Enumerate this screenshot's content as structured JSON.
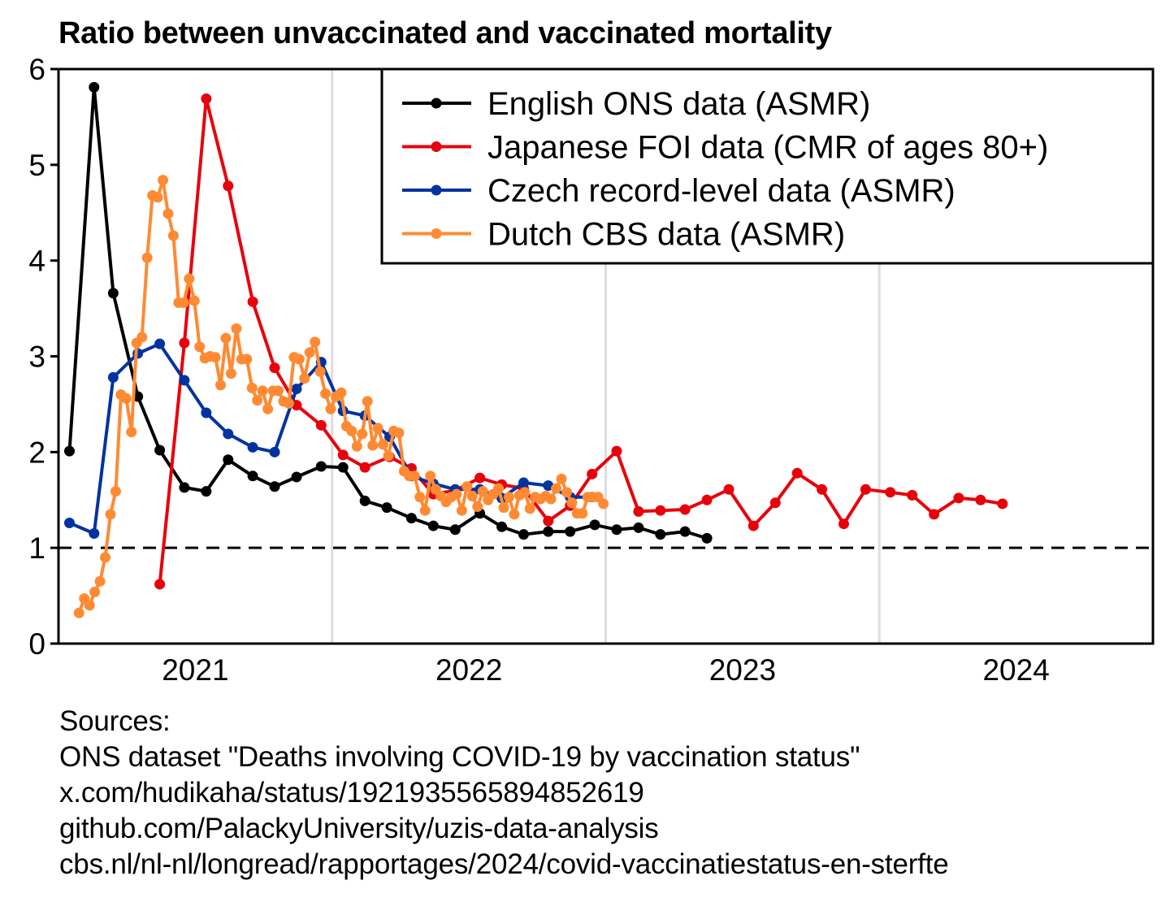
{
  "chart_data": {
    "type": "line",
    "title": "Ratio between unvaccinated and vaccinated mortality",
    "xlabel": "",
    "ylabel": "",
    "xlim": [
      2020.5,
      2024.5
    ],
    "ylim": [
      0,
      6
    ],
    "x_ticks": [
      {
        "value": 2021,
        "label": "2021"
      },
      {
        "value": 2022,
        "label": "2022"
      },
      {
        "value": 2023,
        "label": "2023"
      },
      {
        "value": 2024,
        "label": "2024"
      }
    ],
    "x_gridlines": [
      2021.5,
      2022.5,
      2023.5
    ],
    "y_ticks": [
      {
        "value": 0,
        "label": "0"
      },
      {
        "value": 1,
        "label": "1"
      },
      {
        "value": 2,
        "label": "2"
      },
      {
        "value": 3,
        "label": "3"
      },
      {
        "value": 4,
        "label": "4"
      },
      {
        "value": 5,
        "label": "5"
      },
      {
        "value": 6,
        "label": "6"
      }
    ],
    "reference_line": {
      "y": 1,
      "style": "dashed"
    },
    "grid": "vertical",
    "legend_position": "top-right",
    "series": [
      {
        "name": "English ONS data (ASMR)",
        "color": "#000000",
        "x": [
          2020.54,
          2020.63,
          2020.7,
          2020.79,
          2020.87,
          2020.96,
          2021.04,
          2021.12,
          2021.21,
          2021.29,
          2021.37,
          2021.46,
          2021.54,
          2021.62,
          2021.7,
          2021.79,
          2021.87,
          2021.95,
          2022.04,
          2022.12,
          2022.2,
          2022.29,
          2022.37,
          2022.46,
          2022.54,
          2022.62,
          2022.7,
          2022.79,
          2022.87
        ],
        "y": [
          2.01,
          5.81,
          3.66,
          2.58,
          2.02,
          1.63,
          1.59,
          1.92,
          1.75,
          1.64,
          1.74,
          1.85,
          1.84,
          1.49,
          1.42,
          1.31,
          1.23,
          1.19,
          1.36,
          1.22,
          1.14,
          1.17,
          1.17,
          1.24,
          1.19,
          1.21,
          1.14,
          1.17,
          1.1
        ]
      },
      {
        "name": "Japanese FOI data (CMR of ages 80+)",
        "color": "#e8000b",
        "x": [
          2020.87,
          2020.96,
          2021.04,
          2021.12,
          2021.21,
          2021.29,
          2021.37,
          2021.46,
          2021.54,
          2021.62,
          2021.71,
          2021.79,
          2021.87,
          2021.95,
          2022.04,
          2022.12,
          2022.2,
          2022.29,
          2022.37,
          2022.45,
          2022.54,
          2022.62,
          2022.7,
          2022.79,
          2022.87,
          2022.95,
          2023.04,
          2023.12,
          2023.2,
          2023.29,
          2023.37,
          2023.45,
          2023.54,
          2023.62,
          2023.7,
          2023.79,
          2023.87,
          2023.95
        ],
        "y": [
          0.62,
          3.14,
          5.69,
          4.78,
          3.57,
          2.88,
          2.49,
          2.28,
          1.97,
          1.84,
          1.95,
          1.83,
          1.56,
          1.6,
          1.73,
          1.66,
          1.62,
          1.28,
          1.44,
          1.77,
          2.01,
          1.38,
          1.39,
          1.4,
          1.5,
          1.61,
          1.23,
          1.47,
          1.78,
          1.61,
          1.25,
          1.61,
          1.58,
          1.55,
          1.35,
          1.52,
          1.5,
          1.46
        ]
      },
      {
        "name": "Czech record-level data (ASMR)",
        "color": "#0033a0",
        "x": [
          2020.54,
          2020.63,
          2020.7,
          2020.79,
          2020.87,
          2020.96,
          2021.04,
          2021.12,
          2021.21,
          2021.29,
          2021.37,
          2021.46,
          2021.54,
          2021.62,
          2021.71,
          2021.79,
          2021.87,
          2021.95,
          2022.04,
          2022.12,
          2022.2,
          2022.29,
          2022.37,
          2022.45
        ],
        "y": [
          1.26,
          1.15,
          2.78,
          3.03,
          3.13,
          2.75,
          2.41,
          2.19,
          2.05,
          2.0,
          2.66,
          2.94,
          2.43,
          2.38,
          2.16,
          1.75,
          1.67,
          1.61,
          1.61,
          1.52,
          1.68,
          1.65,
          1.53,
          1.53
        ]
      },
      {
        "name": "Dutch CBS data (ASMR)",
        "color": "#ff8a33",
        "x_start": 2020.575,
        "x_step_weeks": 1,
        "y": [
          0.32,
          0.47,
          0.4,
          0.54,
          0.65,
          0.9,
          1.35,
          1.59,
          2.6,
          2.56,
          2.21,
          3.14,
          3.2,
          4.03,
          4.68,
          4.66,
          4.84,
          4.49,
          4.26,
          3.56,
          3.56,
          3.81,
          3.58,
          3.1,
          2.98,
          3.0,
          2.99,
          2.7,
          3.19,
          2.82,
          3.29,
          2.97,
          2.97,
          2.67,
          2.54,
          2.64,
          2.45,
          2.64,
          2.64,
          2.53,
          2.51,
          2.99,
          2.97,
          2.77,
          3.04,
          3.15,
          2.84,
          2.61,
          2.45,
          2.58,
          2.62,
          2.27,
          2.22,
          2.06,
          2.19,
          2.53,
          2.07,
          2.25,
          2.08,
          1.96,
          2.22,
          2.2,
          1.8,
          1.75,
          1.75,
          1.53,
          1.39,
          1.75,
          1.61,
          1.54,
          1.48,
          1.53,
          1.56,
          1.39,
          1.64,
          1.54,
          1.43,
          1.59,
          1.5,
          1.56,
          1.62,
          1.42,
          1.53,
          1.35,
          1.55,
          1.58,
          1.41,
          1.53,
          1.51,
          1.54,
          1.51,
          1.62,
          1.72,
          1.58,
          1.47,
          1.36,
          1.36,
          1.53,
          1.53,
          1.53,
          1.46
        ]
      }
    ]
  },
  "sources": {
    "heading": "Sources:",
    "lines": [
      "ONS dataset \"Deaths involving COVID-19 by vaccination status\"",
      "x.com/hudikaha/status/1921935565894852619",
      "github.com/PalackyUniversity/uzis-data-analysis",
      "cbs.nl/nl-nl/longread/rapportages/2024/covid-vaccinatiestatus-en-sterfte"
    ]
  }
}
